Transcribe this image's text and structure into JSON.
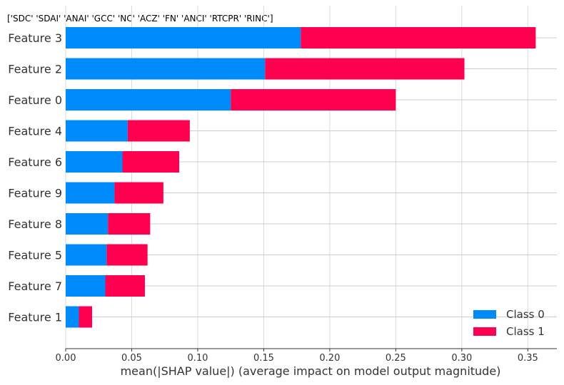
{
  "chart_data": {
    "type": "bar",
    "orientation": "horizontal",
    "stacked": true,
    "title": "['SDC' 'SDAI' 'ANAI' 'GCC' 'NC' 'ACZ' 'FN' 'ANCI' 'RTCPR' 'RINC']",
    "xlabel": "mean(|SHAP value|) (average impact on model output magnitude)",
    "ylabel": "",
    "xlim": [
      0,
      0.372
    ],
    "xticks": [
      "0.00",
      "0.05",
      "0.10",
      "0.15",
      "0.20",
      "0.25",
      "0.30",
      "0.35"
    ],
    "grid": "vertical and horizontal light gray lines",
    "legend_position": "bottom-right",
    "categories": [
      "Feature 3",
      "Feature 2",
      "Feature 0",
      "Feature 4",
      "Feature 6",
      "Feature 9",
      "Feature 8",
      "Feature 5",
      "Feature 7",
      "Feature 1"
    ],
    "series": [
      {
        "name": "Class 0",
        "color": "#008bfb",
        "values": [
          0.178,
          0.151,
          0.125,
          0.047,
          0.043,
          0.037,
          0.032,
          0.031,
          0.03,
          0.01
        ]
      },
      {
        "name": "Class 1",
        "color": "#ff0051",
        "values": [
          0.178,
          0.151,
          0.125,
          0.047,
          0.043,
          0.037,
          0.032,
          0.031,
          0.03,
          0.01
        ]
      }
    ]
  }
}
